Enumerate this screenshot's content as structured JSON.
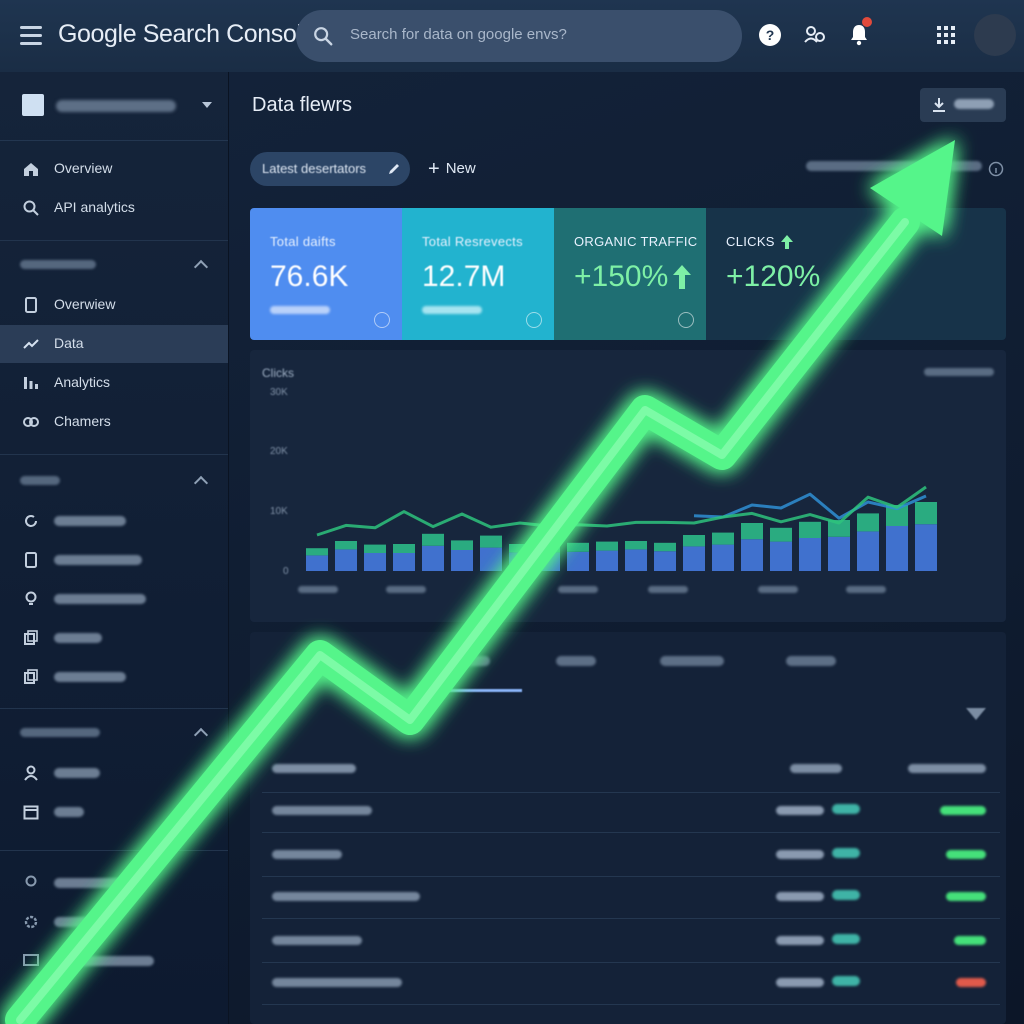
{
  "app": {
    "title": "Google Search Console"
  },
  "search": {
    "placeholder": "Search for data on google envs?"
  },
  "header": {
    "page_title": "Data flewrs"
  },
  "toolbar": {
    "chip_label": "Latest desertators",
    "new_label": "New"
  },
  "sidebar": {
    "items": [
      {
        "label": "Overview",
        "icon": "home-icon"
      },
      {
        "label": "API analytics",
        "icon": "search-icon"
      },
      {
        "label": "Overwiew",
        "icon": "page-icon"
      },
      {
        "label": "Data",
        "icon": "trend-icon",
        "active": true
      },
      {
        "label": "Analytics",
        "icon": "bars-icon"
      },
      {
        "label": "Chamers",
        "icon": "link-icon"
      }
    ]
  },
  "metrics": [
    {
      "label": "Total daifts",
      "value": "76.6K",
      "color": "#4f8df0"
    },
    {
      "label": "Total Resrevects",
      "value": "12.7M",
      "color": "#22b3cf"
    },
    {
      "label": "ORGANIC TRAFFIC",
      "value": "+150%",
      "color": "#1f6f73"
    },
    {
      "label": "CLICKS",
      "value": "+120%",
      "color": "#173349"
    }
  ],
  "chart_data": {
    "type": "bar",
    "ylabel": "Clicks",
    "yticks": [
      "30K",
      "20K",
      "10K",
      "0"
    ],
    "ylim": [
      0,
      30000
    ],
    "categories": [
      "1",
      "2",
      "3",
      "4",
      "5",
      "6",
      "7",
      "8",
      "9",
      "10",
      "11",
      "12",
      "13",
      "14",
      "15",
      "16",
      "17",
      "18",
      "19",
      "20",
      "21",
      "22"
    ],
    "series": [
      {
        "values": [
          2600,
          3600,
          3000,
          3000,
          4200,
          3500,
          3900,
          3100,
          3100,
          3200,
          3400,
          3600,
          3300,
          4100,
          4400,
          5300,
          4900,
          5500,
          5700,
          6600,
          7500,
          7800
        ],
        "color": "#4a82ee"
      },
      {
        "values": [
          1200,
          1400,
          1400,
          1500,
          2000,
          1600,
          2000,
          1400,
          1500,
          1500,
          1500,
          1400,
          1400,
          1900,
          2000,
          2700,
          2300,
          2700,
          2800,
          3000,
          3500,
          3700
        ],
        "color": "#2fc98f"
      }
    ],
    "line": {
      "values": [
        6000,
        7600,
        7200,
        9900,
        7400,
        9500,
        7300,
        8000,
        7500,
        7700,
        7500,
        8100,
        8100,
        8000,
        9000,
        9600,
        8200,
        9400,
        8000,
        12300,
        10600,
        14000
      ],
      "color": "#2ec37d"
    },
    "line2": {
      "values": [
        null,
        null,
        null,
        null,
        null,
        null,
        null,
        null,
        null,
        null,
        null,
        null,
        null,
        9200,
        9000,
        11000,
        10500,
        12800,
        8800,
        11500,
        10400,
        12500
      ],
      "color": "#2f8fd4"
    },
    "grid": false
  },
  "colors": {
    "accent": "#8ab4f8",
    "positive": "#45e07a",
    "negative": "#e05a4b",
    "arrow": "#54f58a"
  }
}
